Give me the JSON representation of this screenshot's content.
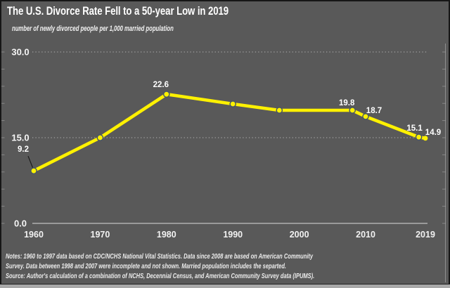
{
  "colors": {
    "background": "#595959",
    "title_text": "#FFFFFF",
    "line": "#FFF100",
    "marker_fill": "#FFF100",
    "marker_ring": "#44546A",
    "gridline": "#CFCFCF",
    "axis_line": "#C2C2C2",
    "leader_line": "#1B1B1B",
    "bottom_edge": "#A8A8A8"
  },
  "notes": {
    "line1": "Notes: 1960 to 1997 data based on CDC/NCHS National Vital Statistics. Data since 2008 are based on American Community",
    "line2": "Survey. Data between 1998 and 2007 were incomplete and not shown. Married population includes the separted.",
    "line3": "Source: Author's calculation of a combination of NCHS, Decennial Census, and American Community Survey data (IPUMS)."
  },
  "chart_data": {
    "type": "line",
    "title": "The U.S. Divorce Rate Fell to a 50-year Low in 2019",
    "subtitle": "number of newly divorced people per 1,000 married population",
    "xlabel": "",
    "ylabel": "number of newly divorced people per 1,000 married population",
    "x": [
      1960,
      1970,
      1980,
      1990,
      1997,
      2008,
      2010,
      2018,
      2019
    ],
    "y": [
      9.2,
      15.0,
      22.6,
      20.9,
      19.8,
      19.8,
      18.7,
      15.1,
      14.9
    ],
    "point_labels": [
      "9.2",
      "",
      "22.6",
      "",
      "",
      "19.8",
      "18.7",
      "15.1",
      "14.9"
    ],
    "x_tick_years": [
      1960,
      1970,
      1980,
      1990,
      2000,
      2010,
      2019
    ],
    "x_tick_labels": [
      "1960",
      "1970",
      "1980",
      "1990",
      "2000",
      "2010",
      "2019"
    ],
    "y_ticks": [
      {
        "value": 0,
        "label": "0.0"
      },
      {
        "value": 15,
        "label": "15.0"
      },
      {
        "value": 30,
        "label": "30.0"
      }
    ],
    "xlim": [
      1960,
      2019
    ],
    "ylim": [
      0,
      33
    ],
    "grid": "horizontal dotted lines at 15.0 and 30.0, solid axis at 0.0",
    "legend": "none",
    "line_color": "#FFF100",
    "marker_fill": "#FFF100",
    "marker_ring": "#44546A"
  }
}
